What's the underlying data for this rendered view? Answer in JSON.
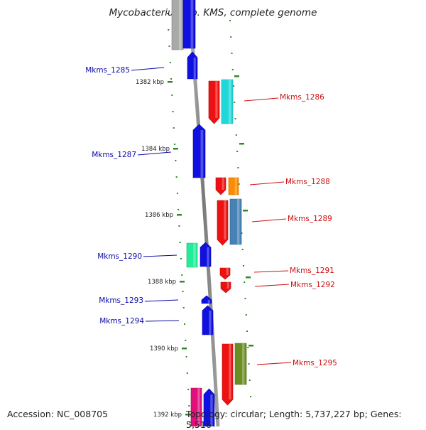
{
  "title": "Mycobacterium sp. KMS, complete genome",
  "footer": {
    "accession": "Accession: NC_008705",
    "summary": "Topology: circular; Length: 5,737,227 bp; Genes: 5,516"
  },
  "colors": {
    "backbone": "#8c8c8c",
    "tick": "#2e8b22",
    "label_forward": "#0a0aa8",
    "label_reverse": "#cc1111"
  },
  "scale_ticks": [
    "1382 kbp",
    "1384 kbp",
    "1386 kbp",
    "1388 kbp",
    "1390 kbp",
    "1392 kbp"
  ],
  "genes": [
    {
      "id": "g-top-grey",
      "strand": "forward",
      "track": "outer",
      "color": "#a9a9a9",
      "label": ""
    },
    {
      "id": "g-top-blue",
      "strand": "forward",
      "track": "inner",
      "color": "#1010e0",
      "label": ""
    },
    {
      "id": "Mkms_1285",
      "strand": "forward",
      "track": "inner",
      "color": "#1010e0",
      "label": "Mkms_1285"
    },
    {
      "id": "Mkms_1286a",
      "strand": "reverse",
      "track": "inner",
      "color": "#ee1111",
      "label": ""
    },
    {
      "id": "Mkms_1286",
      "strand": "reverse",
      "track": "outer",
      "color": "#20d8d8",
      "label": "Mkms_1286"
    },
    {
      "id": "Mkms_1287",
      "strand": "forward",
      "track": "inner",
      "color": "#1010e0",
      "label": "Mkms_1287"
    },
    {
      "id": "Mkms_1288a",
      "strand": "reverse",
      "track": "inner",
      "color": "#ee1111",
      "label": ""
    },
    {
      "id": "Mkms_1288",
      "strand": "reverse",
      "track": "outer",
      "color": "#ff8c00",
      "label": "Mkms_1288"
    },
    {
      "id": "Mkms_1289a",
      "strand": "reverse",
      "track": "inner",
      "color": "#ee1111",
      "label": ""
    },
    {
      "id": "Mkms_1289",
      "strand": "reverse",
      "track": "outer",
      "color": "#4682b4",
      "label": "Mkms_1289"
    },
    {
      "id": "Mkms_1290a",
      "strand": "forward",
      "track": "outer",
      "color": "#22ee99",
      "label": ""
    },
    {
      "id": "Mkms_1290",
      "strand": "forward",
      "track": "inner",
      "color": "#1010e0",
      "label": "Mkms_1290"
    },
    {
      "id": "Mkms_1291",
      "strand": "reverse",
      "track": "inner",
      "color": "#ee1111",
      "label": "Mkms_1291"
    },
    {
      "id": "Mkms_1292",
      "strand": "reverse",
      "track": "inner",
      "color": "#ee1111",
      "label": "Mkms_1292"
    },
    {
      "id": "Mkms_1293",
      "strand": "forward",
      "track": "inner",
      "color": "#1010e0",
      "label": "Mkms_1293"
    },
    {
      "id": "Mkms_1294",
      "strand": "forward",
      "track": "inner",
      "color": "#1010e0",
      "label": "Mkms_1294"
    },
    {
      "id": "Mkms_1295a",
      "strand": "reverse",
      "track": "inner",
      "color": "#ee1111",
      "label": ""
    },
    {
      "id": "Mkms_1295",
      "strand": "reverse",
      "track": "outer",
      "color": "#6b8e23",
      "label": "Mkms_1295"
    },
    {
      "id": "g-bot-pink",
      "strand": "forward",
      "track": "outer",
      "color": "#e0107a",
      "label": ""
    },
    {
      "id": "g-bot-blue",
      "strand": "forward",
      "track": "inner",
      "color": "#1010e0",
      "label": ""
    }
  ]
}
